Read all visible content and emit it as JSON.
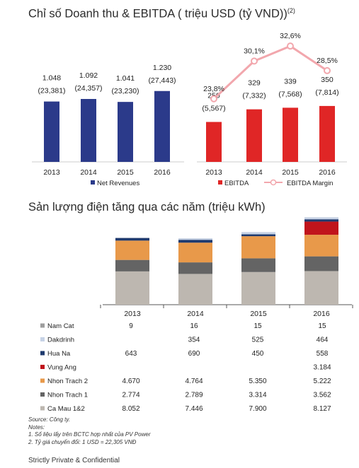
{
  "title1": "Chỉ số Doanh thu & EBITDA  ( triệu USD (tỷ VND))",
  "title1_sup": "(2)",
  "title2": "Sản lượng điện tăng qua các năm (triệu kWh)",
  "colors": {
    "revenue": "#2b3a8a",
    "ebitda": "#e02626",
    "margin_line": "#f2a7ad",
    "grid": "#cccccc"
  },
  "chart_data": [
    {
      "type": "bar",
      "categories": [
        "2013",
        "2014",
        "2015",
        "2016"
      ],
      "series": [
        {
          "name": "Net Revenues",
          "values": [
            1048,
            1092,
            1041,
            1230
          ]
        }
      ],
      "labels": [
        "1.048",
        "1.092",
        "1.041",
        "1.230"
      ],
      "sublabels": [
        "(23,381)",
        "(24,357)",
        "(23,230)",
        "(27,443)"
      ],
      "legend": "bottom"
    },
    {
      "type": "bar",
      "categories": [
        "2013",
        "2014",
        "2015",
        "2016"
      ],
      "series": [
        {
          "name": "EBITDA",
          "values": [
            250,
            329,
            339,
            350
          ]
        },
        {
          "name": "EBITDA Margin",
          "type": "line",
          "values": [
            23.8,
            30.1,
            32.6,
            28.5
          ]
        }
      ],
      "labels": [
        "250",
        "329",
        "339",
        "350"
      ],
      "sublabels": [
        "(5,567)",
        "(7,332)",
        "(7,568)",
        "(7,814)"
      ],
      "margin_labels": [
        "23,8%",
        "30,1%",
        "32,6%",
        "28,5%"
      ],
      "legend": "bottom"
    },
    {
      "type": "bar",
      "stacked": true,
      "categories": [
        "2013",
        "2014",
        "2015",
        "2016"
      ],
      "series": [
        {
          "name": "Nam Cat",
          "color": "#9e9e9e",
          "values": [
            9,
            16,
            15,
            15
          ],
          "labels": [
            "9",
            "16",
            "15",
            "15"
          ]
        },
        {
          "name": "Dakdrinh",
          "color": "#c7d3e6",
          "values": [
            0,
            354,
            525,
            464
          ],
          "labels": [
            "",
            "354",
            "525",
            "464"
          ]
        },
        {
          "name": "Hua Na",
          "color": "#1f3a6e",
          "values": [
            643,
            690,
            450,
            558
          ],
          "labels": [
            "643",
            "690",
            "450",
            "558"
          ]
        },
        {
          "name": "Vung Ang",
          "color": "#c0141c",
          "values": [
            0,
            0,
            0,
            3184
          ],
          "labels": [
            "",
            "",
            "",
            "3.184"
          ]
        },
        {
          "name": "Nhon Trach 2",
          "color": "#e8994a",
          "values": [
            4670,
            4764,
            5350,
            5222
          ],
          "labels": [
            "4.670",
            "4.764",
            "5.350",
            "5.222"
          ]
        },
        {
          "name": "Nhon Trach 1",
          "color": "#646464",
          "values": [
            2774,
            2789,
            3314,
            3562
          ],
          "labels": [
            "2.774",
            "2.789",
            "3.314",
            "3.562"
          ]
        },
        {
          "name": "Ca Mau 1&2",
          "color": "#bdb7b0",
          "values": [
            8052,
            7446,
            7900,
            8127
          ],
          "labels": [
            "8.052",
            "7.446",
            "7.900",
            "8.127"
          ]
        }
      ]
    }
  ],
  "notes": {
    "source": "Source: Công ty.",
    "heading": "Notes:",
    "note1": "1.   Số liệu lấy trên BCTC hợp nhất của PV Power",
    "note2": "2.   Tỷ giá chuyển đổi: 1 USD = 22,305 VNĐ"
  },
  "footer": "Strictly Private & Confidential"
}
